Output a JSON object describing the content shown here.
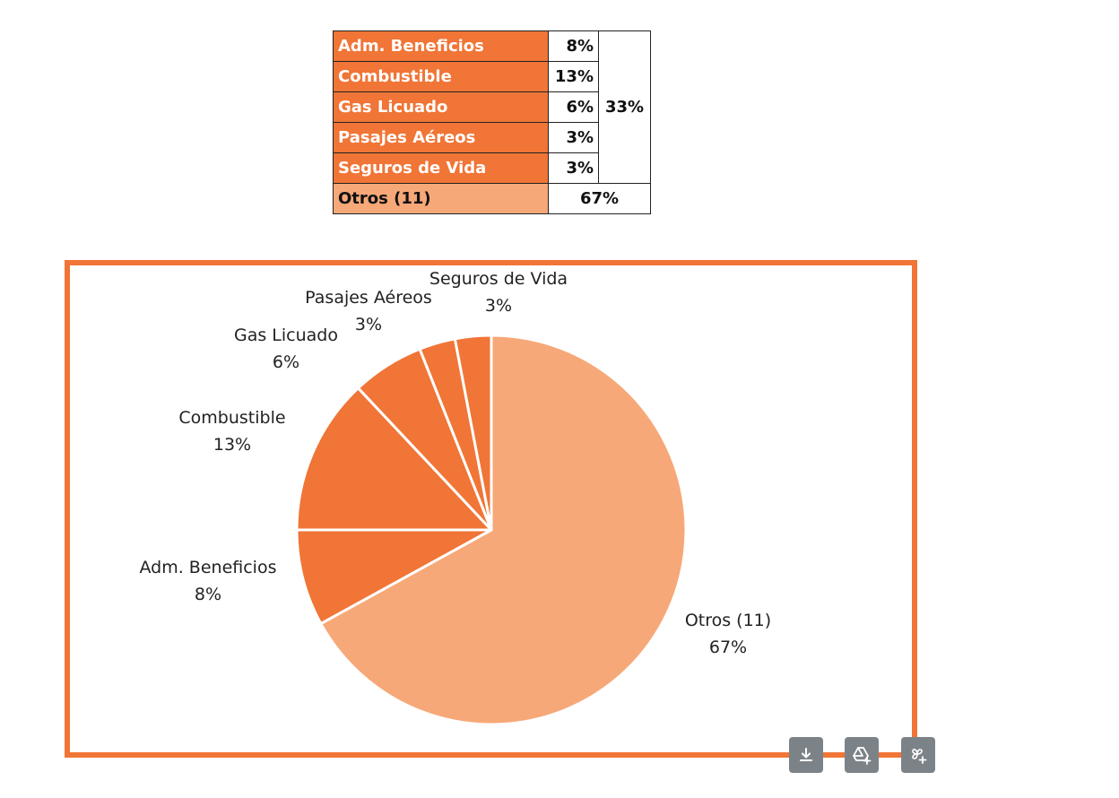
{
  "summary_table": {
    "rows": [
      {
        "label": "Adm. Beneficios",
        "pct": "8%"
      },
      {
        "label": "Combustible",
        "pct": "13%"
      },
      {
        "label": "Gas Licuado",
        "pct": "6%"
      },
      {
        "label": "Pasajes Aéreos",
        "pct": "3%"
      },
      {
        "label": "Seguros de Vida",
        "pct": "3%"
      }
    ],
    "group_total": "33%",
    "other": {
      "label": "Otros (11)",
      "pct": "67%"
    }
  },
  "colors": {
    "accent": "#f07536",
    "other": "#f7a878",
    "frame": "#f07536",
    "toolbar": "#7c8388"
  },
  "chart_data": {
    "type": "pie",
    "title": "",
    "slices": [
      {
        "label": "Otros (11)",
        "value": 67,
        "display": "67%",
        "color": "#f7a878"
      },
      {
        "label": "Adm. Beneficios",
        "value": 8,
        "display": "8%",
        "color": "#f07536"
      },
      {
        "label": "Combustible",
        "value": 13,
        "display": "13%",
        "color": "#f07536"
      },
      {
        "label": "Gas Licuado",
        "value": 6,
        "display": "6%",
        "color": "#f07536"
      },
      {
        "label": "Pasajes Aéreos",
        "value": 3,
        "display": "3%",
        "color": "#f07536"
      },
      {
        "label": "Seguros de Vida",
        "value": 3,
        "display": "3%",
        "color": "#f07536"
      }
    ],
    "start": "12 o'clock",
    "direction": "clockwise",
    "legend": "none",
    "labels": "outside"
  },
  "toolbar": {
    "buttons": [
      {
        "name": "download-button",
        "icon": "download-icon"
      },
      {
        "name": "save-to-drive-button",
        "icon": "drive-add-icon"
      },
      {
        "name": "add-to-collection-button",
        "icon": "pinwheel-add-icon"
      }
    ]
  }
}
